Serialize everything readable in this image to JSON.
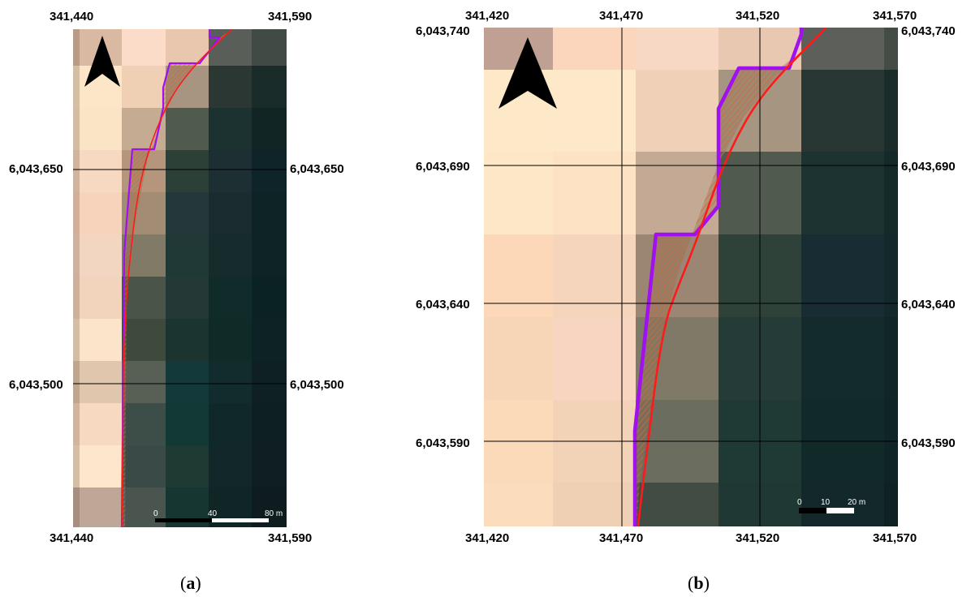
{
  "panels": [
    {
      "id": "a",
      "caption_open": "(",
      "caption_letter": "a",
      "caption_close": ")",
      "x_top_labels": [
        "341,440",
        "341,590"
      ],
      "x_bottom_labels": [
        "341,440",
        "341,590"
      ],
      "y_left_labels": [
        "6,043,650",
        "6,043,500"
      ],
      "y_right_labels": [
        "6,043,650",
        "6,043,500"
      ],
      "scalebar": {
        "labels": [
          "0",
          "40",
          "80 m"
        ]
      }
    },
    {
      "id": "b",
      "caption_open": "(",
      "caption_letter": "b",
      "caption_close": ")",
      "x_top_labels": [
        "341,420",
        "341,470",
        "341,520",
        "341,570"
      ],
      "x_bottom_labels": [
        "341,420",
        "341,470",
        "341,520",
        "341,570"
      ],
      "y_left_labels": [
        "6,043,740",
        "6,043,690",
        "6,043,640",
        "6,043,590"
      ],
      "y_right_labels": [
        "6,043,740",
        "6,043,690",
        "6,043,640",
        "6,043,590"
      ],
      "scalebar": {
        "labels": [
          "0",
          "10",
          "20 m"
        ]
      }
    }
  ],
  "colors": {
    "boundary_red": "#ff1a1a",
    "boundary_purple": "#a010f0",
    "hatch": "#d06a38",
    "north_arrow": "#000000"
  },
  "icons": [
    "north-arrow-icon",
    "north-arrow-icon"
  ]
}
